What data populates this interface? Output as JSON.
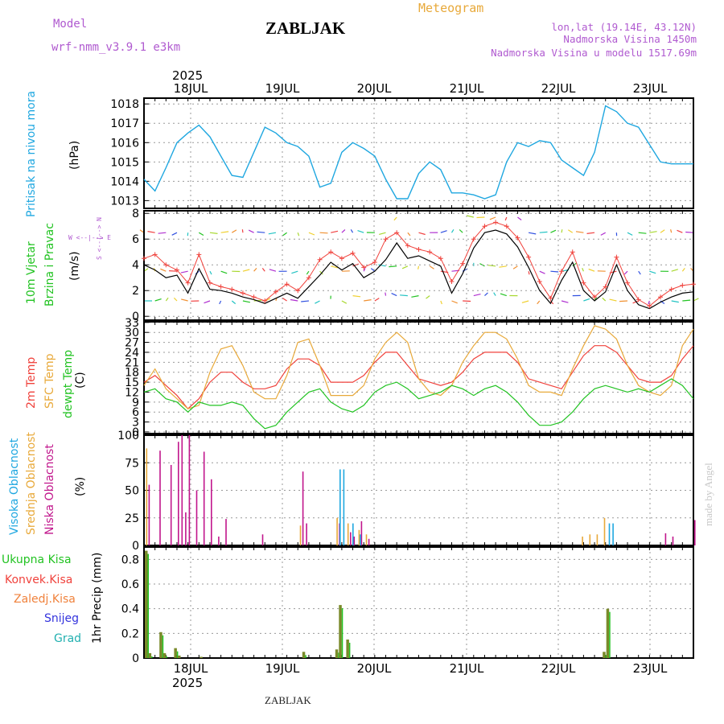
{
  "header": {
    "model_label": "Model",
    "model_name": "wrf-nmm_v3.9.1 e3km",
    "title": "ZABLJAK",
    "meteogram": "Meteogram",
    "lonlat": "lon,lat (19.14E, 43.12N)",
    "altitude": "Nadmorska Visina 1450m",
    "model_altitude": "Nadmorska Visina u modelu 1517.69m",
    "year_top": "2025",
    "year_bottom": "2025",
    "footer": "ZABLJAK",
    "watermark": "made by Angel"
  },
  "days": [
    "18JUL",
    "19JUL",
    "20JUL",
    "21JUL",
    "22JUL",
    "23JUL"
  ],
  "panels": {
    "pressure": {
      "label": "Pritisak na nivou mora",
      "unit": "(hPa)",
      "ticks": [
        "1013",
        "1014",
        "1015",
        "1016",
        "1017",
        "1018"
      ]
    },
    "wind": {
      "label1": "10m Vjetar",
      "label2": "Brzina i Pravac",
      "unit": "(m/s)",
      "ticks": [
        "0",
        "2",
        "4",
        "6",
        "8"
      ],
      "compass": "W <--|--> E",
      "compass_v": "S <--|--> N"
    },
    "temp": {
      "label1": "2m Temp",
      "label2": "SFC Temp",
      "label3": "dewpt Temp",
      "unit": "(C)",
      "ticks": [
        "0",
        "3",
        "6",
        "9",
        "12",
        "15",
        "18",
        "21",
        "24",
        "27",
        "30",
        "33"
      ]
    },
    "cloud": {
      "label1": "Visoka Oblacnost",
      "label2": "Srednja Oblacnost",
      "label3": "Niska Oblacnost",
      "unit": "(%)",
      "ticks": [
        "0",
        "25",
        "50",
        "75",
        "100"
      ]
    },
    "precip": {
      "unit": "1hr Precip (mm)",
      "ticks": [
        "0",
        "0.2",
        "0.4",
        "0.6",
        "0.8"
      ],
      "legend": [
        "Ukupna Kisa",
        "Konvek.Kisa",
        "Zaledj.Kisa",
        "Snijeg",
        "Grad"
      ]
    }
  },
  "colors": {
    "pressure": "#1fa7e0",
    "t2m": "#f0423c",
    "tsfc": "#e8a93a",
    "dewpt": "#22c322",
    "wind_line": "#000000",
    "wind_gust": "#f0423c",
    "cloud_high": "#1fa7e0",
    "cloud_mid": "#e8a93a",
    "cloud_low": "#c1168c",
    "precip_total": "#22c322",
    "precip_conv": "#f0423c",
    "precip_frz": "#f0823c",
    "snow": "#3333dd",
    "grad": "#22b0b0",
    "precip_bar": "#7a8a2a"
  },
  "chart_data": [
    {
      "type": "line",
      "title": "Pritisak na nivou mora",
      "ylabel": "hPa",
      "ylim": [
        1012.6,
        1018.3
      ],
      "x": [
        0,
        3,
        6,
        9,
        12,
        15,
        18,
        21,
        24,
        27,
        30,
        33,
        36,
        39,
        42,
        45,
        48,
        51,
        54,
        57,
        60,
        63,
        66,
        69,
        72,
        75,
        78,
        81,
        84,
        87,
        90,
        93,
        96,
        99,
        102,
        105,
        108,
        111,
        114,
        117,
        120,
        123,
        126,
        129,
        132,
        135,
        138,
        141,
        144,
        147,
        150
      ],
      "values": [
        1014.1,
        1013.5,
        1014.7,
        1016.0,
        1016.5,
        1016.9,
        1016.3,
        1015.3,
        1014.3,
        1014.2,
        1015.5,
        1016.8,
        1016.5,
        1016.0,
        1015.8,
        1015.3,
        1013.7,
        1013.9,
        1015.5,
        1016.0,
        1015.7,
        1015.3,
        1014.1,
        1013.1,
        1013.1,
        1014.4,
        1015.0,
        1014.6,
        1013.4,
        1013.4,
        1013.3,
        1013.1,
        1013.3,
        1015.0,
        1016.0,
        1015.8,
        1016.1,
        1016.0,
        1015.1,
        1014.7,
        1014.3,
        1015.5,
        1017.9,
        1017.6,
        1017.0,
        1016.8,
        1015.9,
        1015.0,
        1014.9,
        1014.9,
        1014.9
      ]
    },
    {
      "type": "line",
      "title": "10m Vjetar Brzina i Pravac",
      "ylabel": "m/s",
      "ylim": [
        -0.3,
        8.2
      ],
      "x": [
        0,
        3,
        6,
        9,
        12,
        15,
        18,
        21,
        24,
        27,
        30,
        33,
        36,
        39,
        42,
        45,
        48,
        51,
        54,
        57,
        60,
        63,
        66,
        69,
        72,
        75,
        78,
        81,
        84,
        87,
        90,
        93,
        96,
        99,
        102,
        105,
        108,
        111,
        114,
        117,
        120,
        123,
        126,
        129,
        132,
        135,
        138,
        141,
        144,
        147,
        150
      ],
      "series": [
        {
          "name": "speed",
          "values": [
            4.0,
            3.6,
            3.0,
            3.2,
            1.8,
            3.7,
            2.1,
            2.0,
            1.8,
            1.5,
            1.3,
            1.0,
            1.4,
            1.8,
            1.4,
            2.3,
            3.2,
            4.2,
            3.6,
            4.1,
            3.0,
            3.5,
            4.4,
            5.7,
            4.5,
            4.7,
            4.3,
            3.9,
            1.8,
            3.3,
            5.3,
            6.5,
            6.7,
            6.4,
            5.4,
            3.8,
            2.0,
            1.0,
            2.8,
            4.2,
            2.0,
            1.2,
            1.9,
            4.0,
            2.0,
            0.9,
            0.6,
            1.1,
            1.5,
            1.8,
            1.9
          ]
        },
        {
          "name": "gust",
          "values": [
            4.5,
            4.8,
            4.0,
            3.6,
            2.6,
            4.8,
            2.6,
            2.3,
            2.1,
            1.8,
            1.5,
            1.2,
            1.9,
            2.5,
            2.0,
            3.0,
            4.4,
            5.0,
            4.5,
            4.9,
            3.8,
            4.2,
            6.0,
            6.5,
            5.5,
            5.2,
            5.0,
            4.5,
            2.7,
            4.1,
            6.0,
            7.0,
            7.3,
            7.0,
            6.1,
            4.6,
            2.7,
            1.4,
            3.5,
            5.0,
            2.6,
            1.5,
            2.3,
            4.6,
            2.6,
            1.3,
            0.8,
            1.5,
            2.1,
            2.4,
            2.5
          ]
        }
      ]
    },
    {
      "type": "line",
      "title": "Temperature",
      "ylabel": "C",
      "ylim": [
        -0.5,
        33.2
      ],
      "x": [
        0,
        3,
        6,
        9,
        12,
        15,
        18,
        21,
        24,
        27,
        30,
        33,
        36,
        39,
        42,
        45,
        48,
        51,
        54,
        57,
        60,
        63,
        66,
        69,
        72,
        75,
        78,
        81,
        84,
        87,
        90,
        93,
        96,
        99,
        102,
        105,
        108,
        111,
        114,
        117,
        120,
        123,
        126,
        129,
        132,
        135,
        138,
        141,
        144,
        147,
        150
      ],
      "series": [
        {
          "name": "2m Temp",
          "values": [
            15,
            17,
            14,
            11,
            7,
            10,
            15,
            18,
            18,
            15,
            13,
            13,
            14,
            19,
            22,
            22,
            20,
            15,
            15,
            15,
            17,
            21,
            24,
            24,
            20,
            16,
            15,
            14,
            15,
            18,
            22,
            24,
            24,
            24,
            21,
            16,
            15,
            14,
            13,
            18,
            23,
            26,
            26,
            24,
            20,
            16,
            15,
            15,
            17,
            22,
            26
          ]
        },
        {
          "name": "SFC Temp",
          "values": [
            14,
            19,
            13,
            10,
            7,
            8,
            18,
            25,
            26,
            20,
            12,
            10,
            10,
            17,
            27,
            28,
            20,
            11,
            11,
            11,
            14,
            22,
            27,
            30,
            27,
            16,
            12,
            11,
            14,
            21,
            26,
            30,
            30,
            28,
            22,
            14,
            12,
            12,
            11,
            19,
            26,
            32,
            31,
            28,
            20,
            14,
            12,
            11,
            14,
            26,
            31
          ]
        },
        {
          "name": "dewpt Temp",
          "values": [
            12,
            13,
            10,
            9,
            6,
            9,
            8,
            8,
            9,
            8,
            4,
            1,
            2,
            6,
            9,
            12,
            13,
            9,
            7,
            6,
            8,
            12,
            14,
            15,
            13,
            10,
            11,
            12,
            14,
            13,
            11,
            13,
            14,
            12,
            9,
            5,
            2,
            2,
            3,
            6,
            10,
            13,
            14,
            13,
            12,
            13,
            12,
            14,
            16,
            14,
            10
          ]
        }
      ]
    },
    {
      "type": "bar",
      "title": "Oblacnost",
      "ylabel": "%",
      "ylim": [
        0,
        100
      ],
      "series": [
        {
          "name": "Niska Oblacnost",
          "x": [
            1,
            4,
            7,
            9,
            10,
            11,
            12,
            14,
            16,
            18,
            20,
            22,
            32,
            43,
            44,
            53,
            56,
            57,
            59,
            61,
            142,
            144,
            150
          ],
          "values": [
            55,
            86,
            73,
            94,
            100,
            30,
            100,
            50,
            85,
            60,
            8,
            24,
            10,
            67,
            20,
            20,
            12,
            8,
            22,
            6,
            11,
            8,
            23
          ]
        },
        {
          "name": "Srednja Oblacnost",
          "x": [
            0,
            42,
            52,
            55,
            58,
            60,
            119,
            121,
            123,
            125
          ],
          "values": [
            88,
            18,
            25,
            20,
            14,
            10,
            8,
            10,
            10,
            25
          ]
        },
        {
          "name": "Visoka Oblacnost",
          "x": [
            52.5,
            53.5,
            56,
            58,
            126,
            127
          ],
          "values": [
            69,
            69,
            20,
            10,
            20,
            20
          ]
        }
      ]
    },
    {
      "type": "bar",
      "title": "1hr Precip",
      "ylabel": "mm",
      "ylim": [
        0,
        0.9
      ],
      "series": [
        {
          "name": "Ukupna Kisa",
          "x": [
            0,
            1,
            4,
            5,
            8,
            9,
            15
          ],
          "values": [
            0.87,
            0.04,
            0.21,
            0.04,
            0.08,
            0.02,
            0.01
          ]
        },
        {
          "name": "Konvek.Kisa",
          "x": [
            43,
            52,
            53,
            55,
            125,
            126
          ],
          "values": [
            0.05,
            0.07,
            0.43,
            0.15,
            0.05,
            0.4
          ]
        }
      ]
    }
  ]
}
